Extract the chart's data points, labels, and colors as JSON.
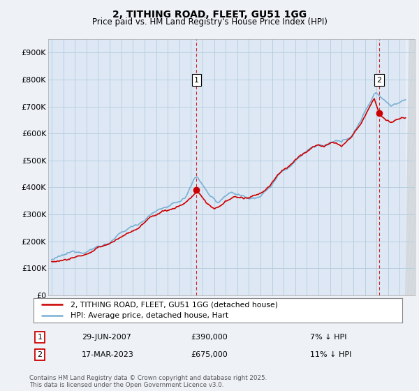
{
  "title": "2, TITHING ROAD, FLEET, GU51 1GG",
  "subtitle": "Price paid vs. HM Land Registry's House Price Index (HPI)",
  "ylabel_ticks": [
    "£0",
    "£100K",
    "£200K",
    "£300K",
    "£400K",
    "£500K",
    "£600K",
    "£700K",
    "£800K",
    "£900K"
  ],
  "ytick_vals": [
    0,
    100000,
    200000,
    300000,
    400000,
    500000,
    600000,
    700000,
    800000,
    900000
  ],
  "ylim": [
    0,
    950000
  ],
  "xlim_start": 1994.7,
  "xlim_end": 2026.3,
  "hpi_color": "#7ab0d4",
  "hpi_fill_color": "#c8dff0",
  "price_color": "#cc0000",
  "marker1_date": 2007.49,
  "marker1_price": 390000,
  "marker1_label": "29-JUN-2007",
  "marker1_amount": "£390,000",
  "marker1_pct": "7% ↓ HPI",
  "marker2_date": 2023.21,
  "marker2_price": 675000,
  "marker2_label": "17-MAR-2023",
  "marker2_amount": "£675,000",
  "marker2_pct": "11% ↓ HPI",
  "legend_line1": "2, TITHING ROAD, FLEET, GU51 1GG (detached house)",
  "legend_line2": "HPI: Average price, detached house, Hart",
  "footer": "Contains HM Land Registry data © Crown copyright and database right 2025.\nThis data is licensed under the Open Government Licence v3.0.",
  "background_color": "#eef2f7",
  "plot_bg_color": "#dde8f4",
  "grid_color": "#b8cfe0"
}
